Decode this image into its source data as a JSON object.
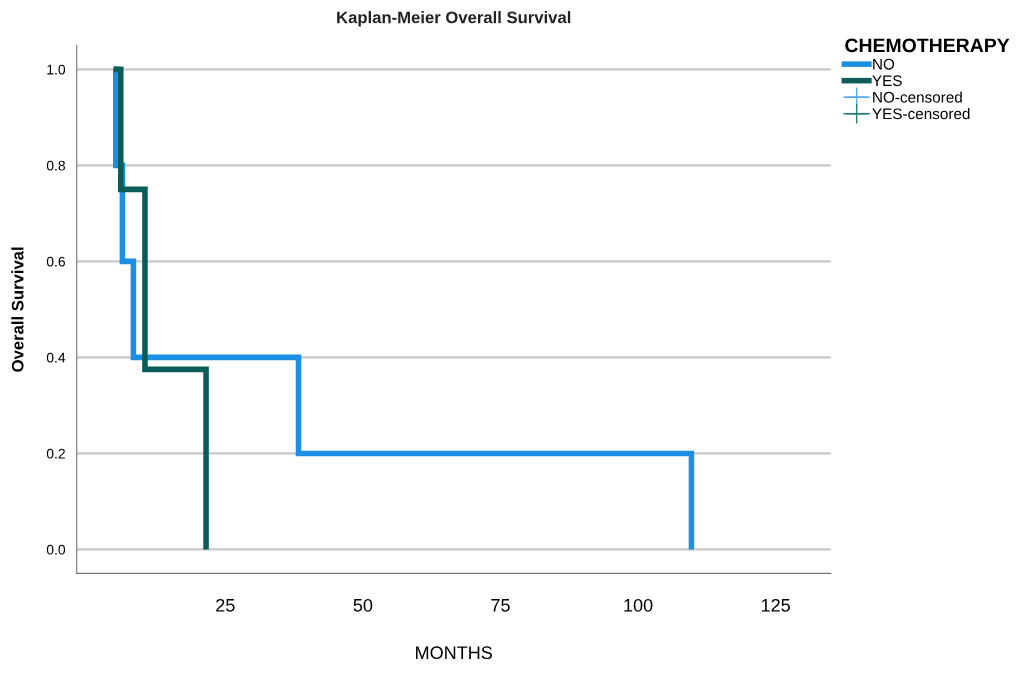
{
  "chart_data": {
    "type": "step",
    "title": "Kaplan-Meier Overall Survival",
    "xlabel": "MONTHS",
    "ylabel": "Overall Survival",
    "legend_title": "CHEMOTHERAPY",
    "series": [
      {
        "name": "NO",
        "color": "#1c8fe3",
        "x": [
          4.7,
          5.1,
          6.3,
          8.3,
          38.3,
          109.7
        ],
        "values": [
          1.0,
          0.8,
          0.6,
          0.4,
          0.2,
          0.0
        ]
      },
      {
        "name": "YES",
        "color": "#0b5c56",
        "x": [
          4.7,
          6.0,
          10.4,
          21.5
        ],
        "values": [
          1.0,
          0.75,
          0.375,
          0.0
        ]
      },
      {
        "name": "NO-censored",
        "type": "scatter",
        "marker": "cross",
        "color": "#5aaae8"
      },
      {
        "name": "YES-censored",
        "type": "scatter",
        "marker": "cross",
        "color": "#2e7d74"
      }
    ],
    "xlim": [
      -2,
      135
    ],
    "xticks": [
      25,
      50,
      75,
      100,
      125
    ],
    "ylim": [
      -0.05,
      1.05
    ],
    "yticks": [
      {
        "value": 0,
        "label": "0.0"
      },
      {
        "value": 0.2,
        "label": "0.2"
      },
      {
        "value": 0.4,
        "label": "0.4"
      },
      {
        "value": 0.6,
        "label": "0.6"
      },
      {
        "value": 0.8,
        "label": "0.8"
      },
      {
        "value": 1.0,
        "label": "1.0"
      }
    ],
    "grid": "y",
    "legend": "top right"
  }
}
